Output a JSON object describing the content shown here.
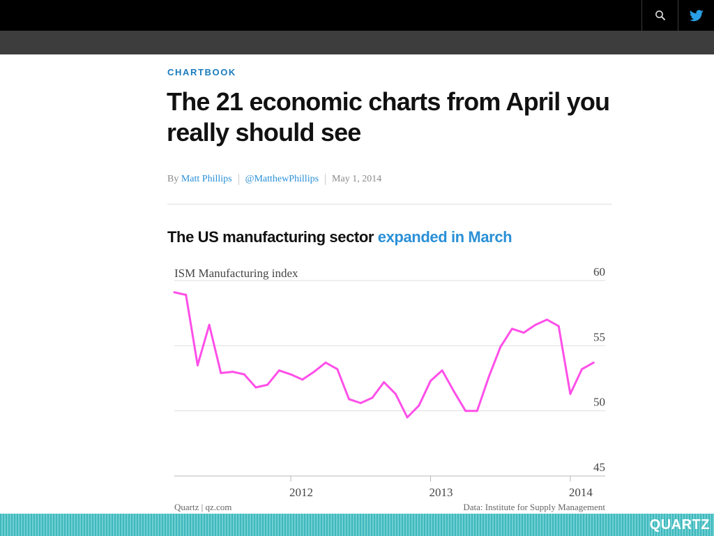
{
  "article": {
    "kicker": "CHARTBOOK",
    "headline": "The 21 economic charts from April you really should see",
    "byline_prefix": "By",
    "author": "Matt Phillips",
    "twitter_handle": "@MatthewPhillips",
    "date": "May 1, 2014"
  },
  "chart_heading": {
    "text": "The US manufacturing sector",
    "link": "expanded in March"
  },
  "icons": {
    "search": "search-icon",
    "twitter": "twitter-icon"
  },
  "colors": {
    "line": "#ff4fe8",
    "link": "#2a90d6",
    "kicker": "#1a7bbf",
    "footer": "#3fb8bd"
  },
  "brand": "QUARTZ",
  "chart_data": {
    "type": "line",
    "title": "ISM Manufacturing index",
    "source_left": "Quartz | qz.com",
    "source_right": "Data: Institute for Supply Management",
    "ylim": [
      45,
      60
    ],
    "yticks": [
      "60",
      "55",
      "50",
      "45"
    ],
    "ytick_values": [
      60,
      55,
      50,
      45
    ],
    "xticks": [
      "2012",
      "2013",
      "2014"
    ],
    "xtick_values": [
      "2012-01",
      "2013-01",
      "2014-01"
    ],
    "x_start": "2011-03",
    "x_end": "2014-04",
    "grid": true,
    "series": [
      {
        "x": [
          "2011-03",
          "2011-04",
          "2011-05",
          "2011-06",
          "2011-07",
          "2011-08",
          "2011-09",
          "2011-10",
          "2011-11",
          "2011-12",
          "2012-01",
          "2012-02",
          "2012-03",
          "2012-04",
          "2012-05",
          "2012-06",
          "2012-07",
          "2012-08",
          "2012-09",
          "2012-10",
          "2012-11",
          "2012-12",
          "2013-01",
          "2013-02",
          "2013-03",
          "2013-04",
          "2013-05",
          "2013-06",
          "2013-07",
          "2013-08",
          "2013-09",
          "2013-10",
          "2013-11",
          "2013-12",
          "2014-01",
          "2014-02",
          "2014-03"
        ],
        "values": [
          59.1,
          58.9,
          53.5,
          56.6,
          52.9,
          53.0,
          52.8,
          51.8,
          52.0,
          53.1,
          52.8,
          52.4,
          53.0,
          53.7,
          53.2,
          50.9,
          50.6,
          51.0,
          52.2,
          51.3,
          49.5,
          50.4,
          52.3,
          53.1,
          51.5,
          50.0,
          50.0,
          52.6,
          54.9,
          56.3,
          56.0,
          56.6,
          57.0,
          56.5,
          51.3,
          53.2,
          53.7
        ]
      }
    ]
  }
}
